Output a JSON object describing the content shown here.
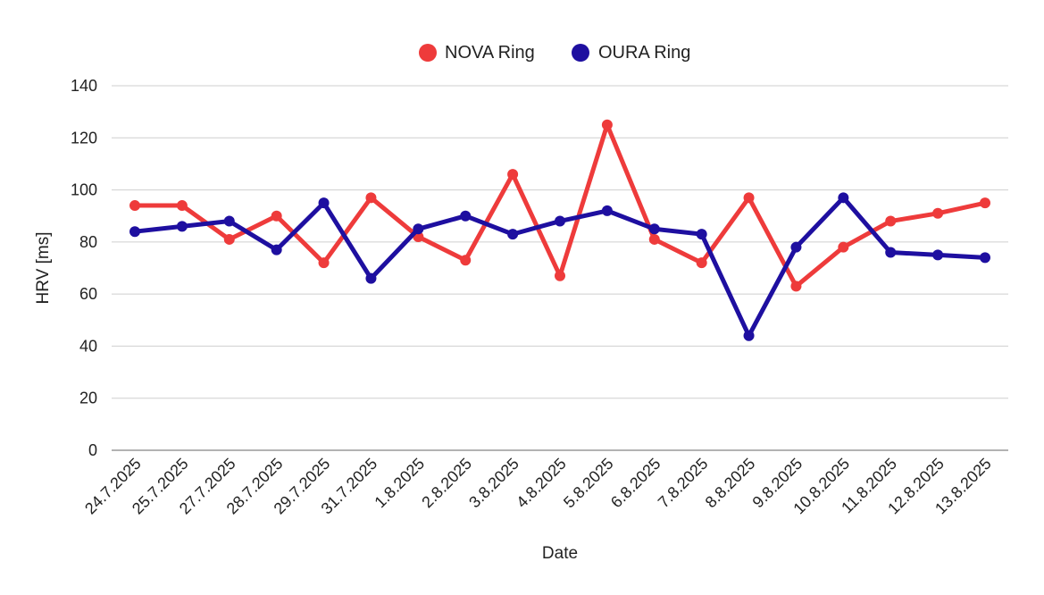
{
  "chart_data": {
    "type": "line",
    "xlabel": "Date",
    "ylabel": "HRV [ms]",
    "ylim": [
      0,
      140
    ],
    "yticks": [
      0,
      20,
      40,
      60,
      80,
      100,
      120,
      140
    ],
    "grid": true,
    "legend_position": "top-center",
    "categories": [
      "24.7.2025",
      "25.7.2025",
      "27.7.2025",
      "28.7.2025",
      "29.7.2025",
      "31.7.2025",
      "1.8.2025",
      "2.8.2025",
      "3.8.2025",
      "4.8.2025",
      "5.8.2025",
      "6.8.2025",
      "7.8.2025",
      "8.8.2025",
      "9.8.2025",
      "10.8.2025",
      "11.8.2025",
      "12.8.2025",
      "13.8.2025"
    ],
    "series": [
      {
        "name": "NOVA Ring",
        "color": "#ee3b3b",
        "values": [
          94,
          94,
          81,
          90,
          72,
          97,
          82,
          73,
          106,
          67,
          125,
          81,
          72,
          97,
          63,
          78,
          88,
          91,
          95
        ]
      },
      {
        "name": "OURA Ring",
        "color": "#1e0fa0",
        "values": [
          84,
          86,
          88,
          77,
          95,
          66,
          85,
          90,
          83,
          88,
          92,
          85,
          83,
          44,
          78,
          97,
          76,
          75,
          74
        ]
      }
    ]
  }
}
